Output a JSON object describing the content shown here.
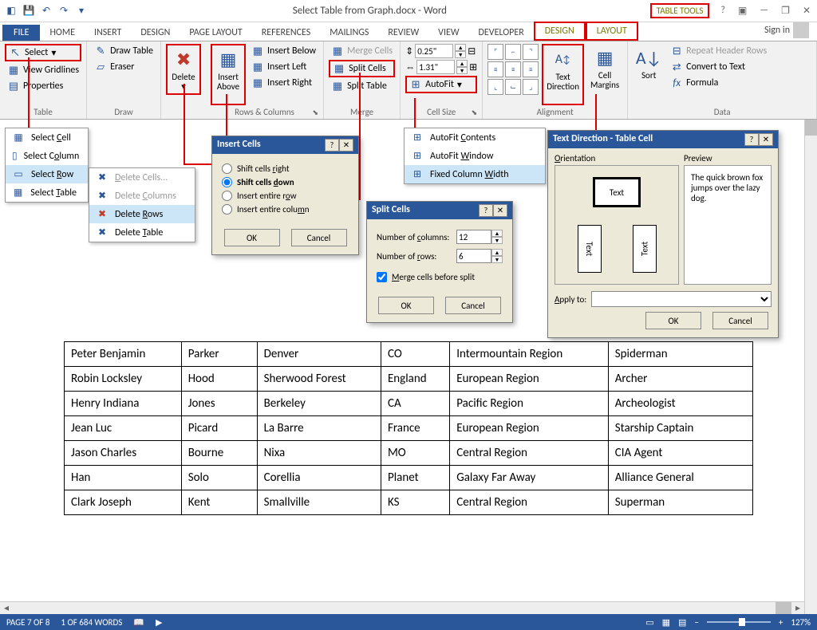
{
  "title": "Select Table from Graph.docx - Word",
  "tableTools": "TABLE TOOLS",
  "tabs": {
    "file": "FILE",
    "home": "HOME",
    "insert": "INSERT",
    "design": "DESIGN",
    "pageLayout": "PAGE LAYOUT",
    "references": "REFERENCES",
    "mailings": "MAILINGS",
    "review": "REVIEW",
    "view": "VIEW",
    "developer": "DEVELOPER",
    "design2": "DESIGN",
    "layout2": "LAYOUT",
    "signin": "Sign in"
  },
  "ribbon": {
    "table": {
      "label": "Table",
      "select": "Select",
      "viewGridlines": "View Gridlines",
      "properties": "Properties"
    },
    "draw": {
      "label": "Draw",
      "drawTable": "Draw Table",
      "eraser": "Eraser"
    },
    "delete": "Delete",
    "rowsCols": {
      "label": "Rows & Columns",
      "insertAbove": "Insert Above",
      "insertBelow": "Insert Below",
      "insertLeft": "Insert Left",
      "insertRight": "Insert Right"
    },
    "merge": {
      "label": "Merge",
      "mergeCells": "Merge Cells",
      "splitCells": "Split Cells",
      "splitTable": "Split Table"
    },
    "cellSize": {
      "label": "Cell Size",
      "height": "0.25\"",
      "width": "1.31\"",
      "autoFit": "AutoFit"
    },
    "alignment": {
      "label": "Alignment",
      "textDirection": "Text Direction",
      "cellMargins": "Cell Margins"
    },
    "data": {
      "label": "Data",
      "sort": "Sort",
      "repeatHeader": "Repeat Header Rows",
      "convertText": "Convert to Text",
      "formula": "Formula"
    }
  },
  "selectMenu": {
    "cell": "Select Cell",
    "column": "Select Column",
    "row": "Select Row",
    "table": "Select Table"
  },
  "deleteMenu": {
    "cells": "Delete Cells...",
    "columns": "Delete Columns",
    "rows": "Delete Rows",
    "table": "Delete Table"
  },
  "autoFitMenu": {
    "contents": "AutoFit Contents",
    "window": "AutoFit Window",
    "fixed": "Fixed Column Width"
  },
  "insertCellsDlg": {
    "title": "Insert Cells",
    "right": "Shift cells right",
    "down": "Shift cells down",
    "row": "Insert entire row",
    "col": "Insert entire column",
    "ok": "OK",
    "cancel": "Cancel"
  },
  "splitCellsDlg": {
    "title": "Split Cells",
    "numCols": "Number of columns:",
    "numColsVal": "12",
    "numRows": "Number of rows:",
    "numRowsVal": "6",
    "merge": "Merge cells before split",
    "ok": "OK",
    "cancel": "Cancel"
  },
  "textDirDlg": {
    "title": "Text Direction - Table Cell",
    "orientation": "Orientation",
    "preview": "Preview",
    "text": "Text",
    "previewText": "The quick brown fox jumps over the lazy dog.",
    "applyTo": "Apply to:",
    "ok": "OK",
    "cancel": "Cancel"
  },
  "dataTable": {
    "rows": [
      [
        "Peter Benjamin",
        "Parker",
        "Denver",
        "CO",
        "Intermountain Region",
        "Spiderman"
      ],
      [
        "Robin Locksley",
        "Hood",
        "Sherwood Forest",
        "England",
        "European Region",
        "Archer"
      ],
      [
        "Henry Indiana",
        "Jones",
        "Berkeley",
        "CA",
        "Pacific Region",
        "Archeologist"
      ],
      [
        "Jean Luc",
        "Picard",
        "La Barre",
        "France",
        "European Region",
        "Starship Captain"
      ],
      [
        "Jason Charles",
        "Bourne",
        "Nixa",
        "MO",
        "Central Region",
        "CIA Agent"
      ],
      [
        "Han",
        "Solo",
        "Corellia",
        "Planet",
        "Galaxy Far Away",
        "Alliance General"
      ],
      [
        "Clark Joseph",
        "Kent",
        "Smallville",
        "KS",
        "Central Region",
        "Superman"
      ]
    ],
    "colWidths": [
      "17%",
      "11%",
      "18%",
      "10%",
      "23%",
      "21%"
    ]
  },
  "status": {
    "page": "PAGE 7 OF 8",
    "words": "1 OF 684 WORDS",
    "zoom": "127%"
  },
  "colors": {
    "accent": "#2a579a",
    "highlightBorder": "#d00",
    "ribbonBg": "#f1f1f1",
    "dialogBg": "#ece9d8"
  }
}
